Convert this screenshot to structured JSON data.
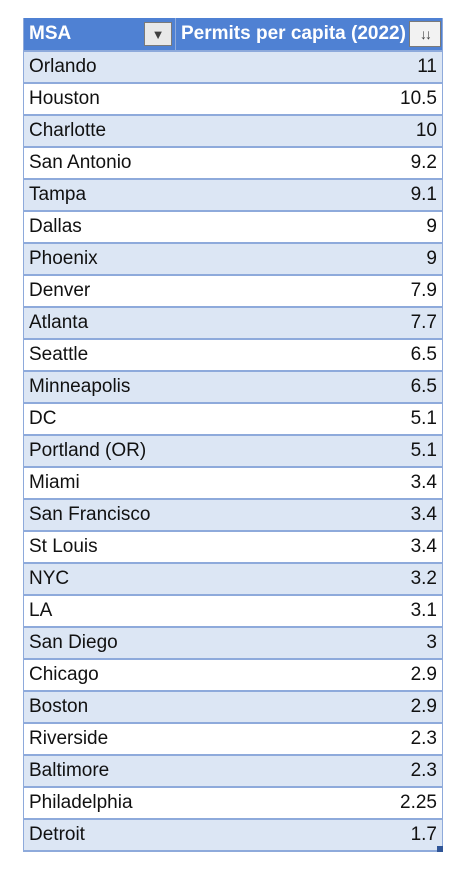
{
  "table": {
    "headers": {
      "msa": "MSA",
      "permits": "Permits per capita (2022)",
      "filter_icon": "▼",
      "sort_icon": "↓↓"
    },
    "rows": [
      {
        "msa": "Orlando",
        "value": "11"
      },
      {
        "msa": "Houston",
        "value": "10.5"
      },
      {
        "msa": "Charlotte",
        "value": "10"
      },
      {
        "msa": "San Antonio",
        "value": "9.2"
      },
      {
        "msa": "Tampa",
        "value": "9.1"
      },
      {
        "msa": "Dallas",
        "value": "9"
      },
      {
        "msa": "Phoenix",
        "value": "9"
      },
      {
        "msa": "Denver",
        "value": "7.9"
      },
      {
        "msa": "Atlanta",
        "value": "7.7"
      },
      {
        "msa": "Seattle",
        "value": "6.5"
      },
      {
        "msa": "Minneapolis",
        "value": "6.5"
      },
      {
        "msa": "DC",
        "value": "5.1"
      },
      {
        "msa": "Portland (OR)",
        "value": "5.1"
      },
      {
        "msa": "Miami",
        "value": "3.4"
      },
      {
        "msa": "San Francisco",
        "value": "3.4"
      },
      {
        "msa": "St Louis",
        "value": "3.4"
      },
      {
        "msa": "NYC",
        "value": "3.2"
      },
      {
        "msa": "LA",
        "value": "3.1"
      },
      {
        "msa": "San Diego",
        "value": "3"
      },
      {
        "msa": "Chicago",
        "value": "2.9"
      },
      {
        "msa": "Boston",
        "value": "2.9"
      },
      {
        "msa": "Riverside",
        "value": "2.3"
      },
      {
        "msa": "Baltimore",
        "value": "2.3"
      },
      {
        "msa": "Philadelphia",
        "value": "2.25"
      },
      {
        "msa": "Detroit",
        "value": "1.7"
      }
    ]
  },
  "colors": {
    "header_bg": "#4f81d3",
    "band_bg": "#dce6f4",
    "border": "#8eaadb"
  }
}
